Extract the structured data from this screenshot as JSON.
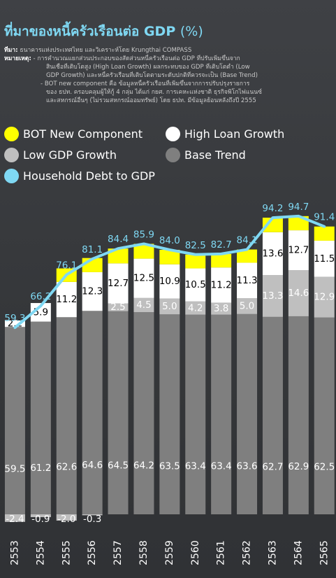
{
  "title": {
    "main": "ที่มาของหนี้ครัวเรือนต่อ GDP",
    "unit": "(%)"
  },
  "notes": {
    "source_label": "ที่มา:",
    "source_text": "ธนาคารแห่งประเทศไทย และวิเคราะห์โดย Krungthai COMPASS",
    "note_label": "หมายเหตุ:",
    "note_lines": [
      "- การคำนวณแยกส่วนประกอบของสัดส่วนหนี้ครัวเรือนต่อ GDP ที่ปรับเพิ่มขึ้นจาก",
      "สินเชื่อที่เติบโตสูง (High Loan Growth) ผลกระทบของ GDP ที่เติบโตต่ำ (Low",
      "GDP Growth) และหนี้ครัวเรือนที่เติบโตตามระดับปกติที่ควรจะเป็น (Base Trend)",
      "- BOT new component คือ ข้อมูลหนี้ครัวเรือนที่เพิ่มขึ้นจากการปรับปรุงรายการ",
      "ของ ธปท. ครอบคลุมผู้ให้กู้ 4 กลุ่ม ได้แก่ กยศ. การเคหะแห่งชาติ ธุรกิจพิโกไฟแนนซ์",
      "และสหกรณ์อื่นๆ (ไม่รวมสหกรณ์ออมทรัพย์) โดย ธปท. มีข้อมูลย้อนหลังถึงปี 2555"
    ]
  },
  "colors": {
    "bot": "#ffff00",
    "high": "#ffffff",
    "low": "#bfbfbf",
    "base": "#7f7f7f",
    "line": "#7fd8f3",
    "value_text_dark": "#000000",
    "value_text_light": "#ffffff"
  },
  "chart_data": {
    "type": "bar",
    "stacked": true,
    "categories": [
      "2553",
      "2554",
      "2555",
      "2556",
      "2557",
      "2558",
      "2559",
      "2560",
      "2561",
      "2562",
      "2563",
      "2564",
      "2565"
    ],
    "series": [
      {
        "key": "base",
        "name": "Base Trend",
        "values": [
          59.5,
          61.2,
          62.6,
          64.6,
          64.5,
          64.2,
          63.5,
          63.4,
          63.4,
          63.6,
          62.7,
          62.9,
          62.5
        ]
      },
      {
        "key": "low",
        "name": "Low GDP Growth",
        "values": [
          -2.4,
          -0.9,
          -2.0,
          -0.3,
          2.5,
          4.5,
          5.0,
          4.2,
          3.8,
          5.0,
          13.3,
          14.6,
          12.9
        ]
      },
      {
        "key": "high",
        "name": "High Loan Growth",
        "values": [
          2.2,
          5.9,
          11.2,
          12.3,
          12.7,
          12.5,
          10.9,
          10.5,
          11.2,
          11.3,
          13.6,
          12.7,
          11.5
        ]
      },
      {
        "key": "bot",
        "name": "BOT New Component",
        "values": [
          0,
          0,
          4.3,
          4.5,
          4.7,
          4.7,
          4.6,
          4.4,
          4.3,
          4.2,
          4.6,
          4.5,
          4.5
        ]
      }
    ],
    "line": {
      "name": "Household Debt to GDP",
      "values": [
        59.3,
        66.2,
        76.1,
        81.1,
        84.4,
        85.9,
        84.0,
        82.5,
        82.7,
        84.1,
        94.2,
        94.7,
        91.4
      ]
    },
    "legend_order": [
      "BOT New Component",
      "High Loan Growth",
      "Low GDP Growth",
      "Base Trend",
      "Household Debt to GDP"
    ],
    "legend_placement": "top",
    "xlabel": "",
    "ylabel": "",
    "ylim": [
      -5,
      100
    ],
    "grid": false
  }
}
